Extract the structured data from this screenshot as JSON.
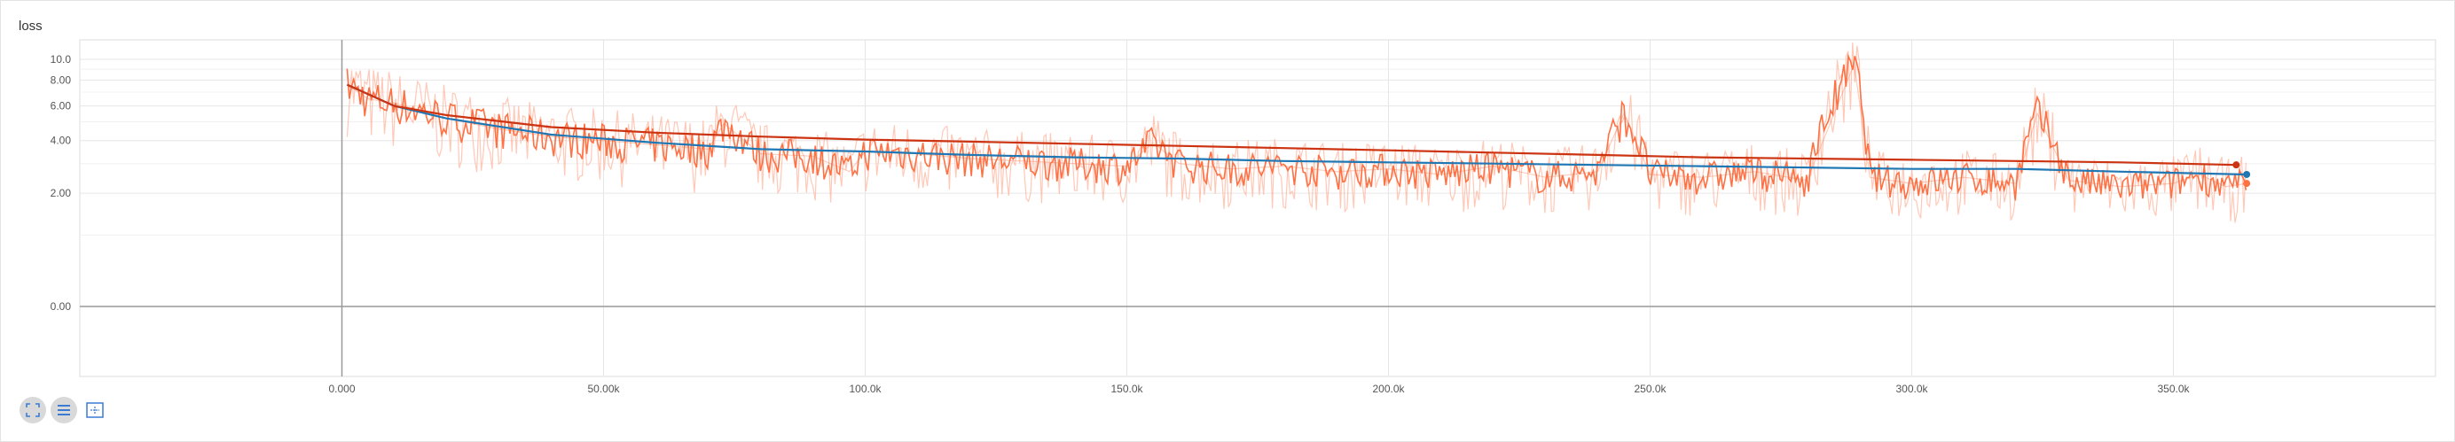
{
  "panel": {
    "title": "loss"
  },
  "toolbar": [
    {
      "name": "expand-chart-button",
      "icon": "fullscreen-icon",
      "shaded": true
    },
    {
      "name": "toggle-log-scale-button",
      "icon": "list-icon",
      "shaded": true
    },
    {
      "name": "fit-domain-button",
      "icon": "fit-domain-icon",
      "shaded": false
    }
  ],
  "colors": {
    "raw_orange": "#ff7043",
    "raw_orange_faint": "#ffb199",
    "smooth_blue": "#1f77b4",
    "smooth_red": "#cc3311",
    "grid": "#e6e6e6",
    "axis": "#999999"
  },
  "chart_data": {
    "type": "line",
    "title": "loss",
    "xlabel": "",
    "ylabel": "",
    "xlim": [
      -50000,
      400000
    ],
    "ylim_note": "y axis uses a symmetric-log style scale",
    "x_ticks": [
      {
        "value": 0,
        "label": "0.000"
      },
      {
        "value": 50000,
        "label": "50.00k"
      },
      {
        "value": 100000,
        "label": "100.0k"
      },
      {
        "value": 150000,
        "label": "150.0k"
      },
      {
        "value": 200000,
        "label": "200.0k"
      },
      {
        "value": 250000,
        "label": "250.0k"
      },
      {
        "value": 300000,
        "label": "300.0k"
      },
      {
        "value": 350000,
        "label": "350.0k"
      }
    ],
    "y_ticks": [
      {
        "value": 10.0,
        "label": "10.0"
      },
      {
        "value": 8.0,
        "label": "8.00"
      },
      {
        "value": 6.0,
        "label": "6.00"
      },
      {
        "value": 4.0,
        "label": "4.00"
      },
      {
        "value": 2.0,
        "label": "2.00"
      },
      {
        "value": 0.0,
        "label": "0.00"
      }
    ],
    "grid": true,
    "series": [
      {
        "color": "#ff7043",
        "x": [
          1000,
          5000,
          10000,
          15000,
          20000,
          30000,
          40000,
          50000,
          60000,
          70000,
          73000,
          80000,
          90000,
          97000,
          100000,
          110000,
          120000,
          130000,
          140000,
          150000,
          155000,
          160000,
          170000,
          180000,
          190000,
          200000,
          210000,
          220000,
          230000,
          240000,
          245000,
          250000,
          260000,
          270000,
          280000,
          289000,
          292000,
          300000,
          310000,
          320000,
          324000,
          330000,
          340000,
          350000,
          355000,
          360000,
          364000
        ],
        "values": [
          7.6,
          6.5,
          6.2,
          5.7,
          5.2,
          4.6,
          4.2,
          4.0,
          3.8,
          3.6,
          4.9,
          3.4,
          3.3,
          2.7,
          3.5,
          3.4,
          3.2,
          3.1,
          3.0,
          2.9,
          3.9,
          3.0,
          2.8,
          2.9,
          2.7,
          2.8,
          2.6,
          2.9,
          2.5,
          2.7,
          5.5,
          2.6,
          2.5,
          2.7,
          2.4,
          9.5,
          2.5,
          2.3,
          2.5,
          2.3,
          5.5,
          2.4,
          2.2,
          2.3,
          2.6,
          2.2,
          2.3
        ]
      },
      {
        "color": "#1f77b4",
        "x": [
          1000,
          10000,
          20000,
          40000,
          60000,
          80000,
          100000,
          120000,
          140000,
          160000,
          180000,
          200000,
          220000,
          240000,
          260000,
          280000,
          300000,
          320000,
          340000,
          364000
        ],
        "values": [
          7.6,
          6.0,
          5.2,
          4.3,
          3.9,
          3.6,
          3.5,
          3.35,
          3.25,
          3.2,
          3.1,
          3.05,
          3.0,
          2.95,
          2.9,
          2.85,
          2.8,
          2.8,
          2.7,
          2.6
        ]
      },
      {
        "color": "#cc3311",
        "x": [
          1000,
          10000,
          20000,
          40000,
          60000,
          80000,
          100000,
          120000,
          140000,
          160000,
          180000,
          200000,
          220000,
          240000,
          260000,
          280000,
          300000,
          320000,
          340000,
          362000
        ],
        "values": [
          7.6,
          6.0,
          5.4,
          4.7,
          4.4,
          4.2,
          4.05,
          3.95,
          3.85,
          3.75,
          3.65,
          3.55,
          3.45,
          3.35,
          3.25,
          3.2,
          3.15,
          3.1,
          3.05,
          2.95
        ]
      }
    ]
  }
}
